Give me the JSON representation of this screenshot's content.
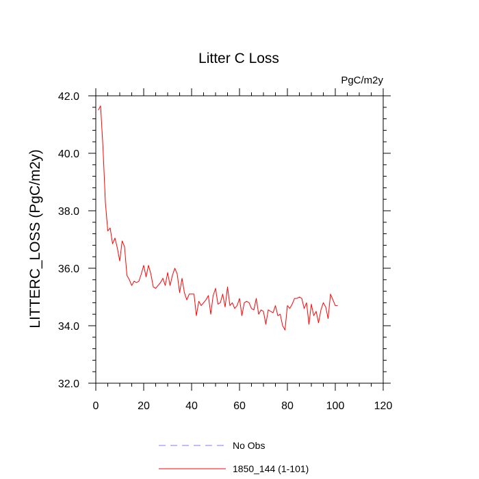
{
  "chart_data": {
    "type": "line",
    "title": "Litter C Loss",
    "units_label": "PgC/m2y",
    "ylabel": "LITTERC_LOSS  (PgC/m2y)",
    "xlabel": "",
    "xlim": [
      0,
      120
    ],
    "ylim": [
      32.0,
      42.0
    ],
    "xticks": [
      0,
      20,
      40,
      60,
      80,
      100,
      120
    ],
    "xtick_labels": [
      "0",
      "20",
      "40",
      "60",
      "80",
      "100",
      "120"
    ],
    "yticks": [
      32.0,
      34.0,
      36.0,
      38.0,
      40.0,
      42.0
    ],
    "ytick_labels": [
      "32.0",
      "34.0",
      "36.0",
      "38.0",
      "40.0",
      "42.0"
    ],
    "grid": false,
    "legend_position": "bottom",
    "legend": [
      {
        "label": "No Obs",
        "color": "#7b7bff",
        "dash": "dashed"
      },
      {
        "label": "1850_144 (1-101)",
        "color": "#ff0000",
        "dash": "solid"
      }
    ],
    "series": [
      {
        "name": "1850_144 (1-101)",
        "color": "#ff0000",
        "x": [
          1,
          2,
          3,
          4,
          5,
          6,
          7,
          8,
          9,
          10,
          11,
          12,
          13,
          14,
          15,
          16,
          17,
          18,
          19,
          20,
          21,
          22,
          23,
          24,
          25,
          26,
          27,
          28,
          29,
          30,
          31,
          32,
          33,
          34,
          35,
          36,
          37,
          38,
          39,
          40,
          41,
          42,
          43,
          44,
          45,
          46,
          47,
          48,
          49,
          50,
          51,
          52,
          53,
          54,
          55,
          56,
          57,
          58,
          59,
          60,
          61,
          62,
          63,
          64,
          65,
          66,
          67,
          68,
          69,
          70,
          71,
          72,
          73,
          74,
          75,
          76,
          77,
          78,
          79,
          80,
          81,
          82,
          83,
          84,
          85,
          86,
          87,
          88,
          89,
          90,
          91,
          92,
          93,
          94,
          95,
          96,
          97,
          98,
          99,
          100,
          101
        ],
        "values": [
          41.5,
          41.65,
          40.2,
          38.3,
          37.3,
          37.4,
          36.85,
          37.05,
          36.7,
          36.25,
          36.95,
          36.75,
          35.75,
          35.6,
          35.4,
          35.55,
          35.5,
          35.55,
          35.8,
          36.1,
          35.7,
          36.1,
          35.8,
          35.35,
          35.3,
          35.4,
          35.5,
          35.65,
          35.4,
          35.85,
          35.4,
          35.75,
          36.0,
          35.8,
          35.15,
          35.65,
          35.15,
          34.9,
          35.1,
          35.1,
          35.1,
          34.35,
          34.85,
          34.7,
          34.8,
          34.9,
          35.05,
          34.4,
          35.05,
          35.3,
          34.75,
          34.8,
          35.1,
          34.65,
          35.35,
          34.7,
          34.8,
          34.6,
          34.7,
          34.95,
          34.35,
          34.8,
          34.85,
          34.8,
          34.6,
          34.55,
          34.95,
          34.4,
          34.55,
          34.5,
          34.05,
          34.55,
          34.5,
          34.45,
          34.7,
          34.35,
          34.4,
          34.0,
          33.85,
          34.7,
          34.6,
          34.75,
          34.95,
          34.95,
          35.0,
          34.95,
          34.6,
          34.8,
          34.05,
          34.75,
          34.35,
          34.5,
          34.1,
          34.55,
          34.8,
          34.65,
          34.25,
          35.1,
          34.9,
          34.7,
          34.7
        ]
      }
    ]
  }
}
